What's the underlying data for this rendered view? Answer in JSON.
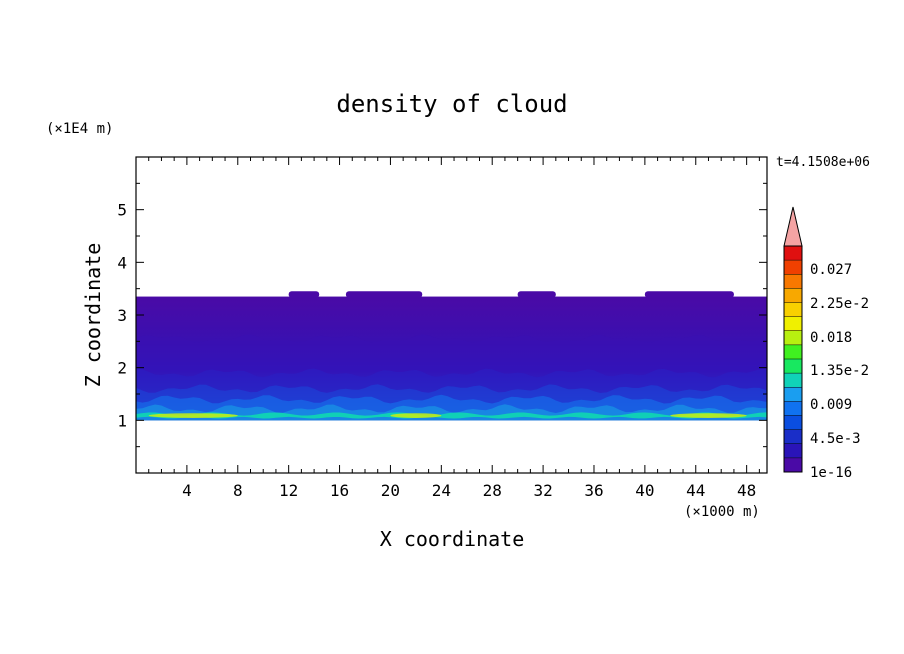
{
  "chart_data": {
    "type": "heatmap",
    "title": "density of cloud",
    "xlabel": "X coordinate",
    "ylabel": "Z coordinate",
    "x_unit": "(×1000 m)",
    "y_unit": "(×1E4 m)",
    "time_label": "t=4.1508e+06",
    "xlim": [
      0,
      49.6
    ],
    "ylim": [
      0,
      6
    ],
    "x_ticks": [
      4,
      8,
      12,
      16,
      20,
      24,
      28,
      32,
      36,
      40,
      44,
      48
    ],
    "y_ticks": [
      1,
      2,
      3,
      4,
      5
    ],
    "colorbar": {
      "labels": [
        "0.027",
        "2.25e-2",
        "0.018",
        "1.35e-2",
        "0.009",
        "4.5e-3",
        "1e-16"
      ],
      "colors": [
        "#4a0aa6",
        "#2a14b8",
        "#1a2ec8",
        "#0a4ee0",
        "#1072f0",
        "#1a9ef0",
        "#10d2b8",
        "#18e860",
        "#40f020",
        "#b8f010",
        "#f0f000",
        "#f8d000",
        "#f8a800",
        "#f87800",
        "#f04000",
        "#e01010"
      ],
      "overflow_color": "#f4a3a3"
    },
    "cloud_layer": {
      "z_bottom": 1.0,
      "z_top": 3.35,
      "bands": [
        {
          "z_from": 2.55,
          "z_to": 3.35,
          "level": "1e-16"
        },
        {
          "z_from": 1.9,
          "z_to": 2.55,
          "level": "near 1e-16"
        },
        {
          "z_from": 1.55,
          "z_to": 1.9,
          "level": "4.5e-3"
        },
        {
          "z_from": 1.25,
          "z_to": 1.55,
          "level": "0.009"
        },
        {
          "z_from": 1.0,
          "z_to": 1.2,
          "level": "1.35e-2 to 0.018"
        }
      ],
      "peak_regions_x": [
        [
          1,
          8
        ],
        [
          20,
          24
        ],
        [
          42,
          48
        ]
      ]
    }
  }
}
